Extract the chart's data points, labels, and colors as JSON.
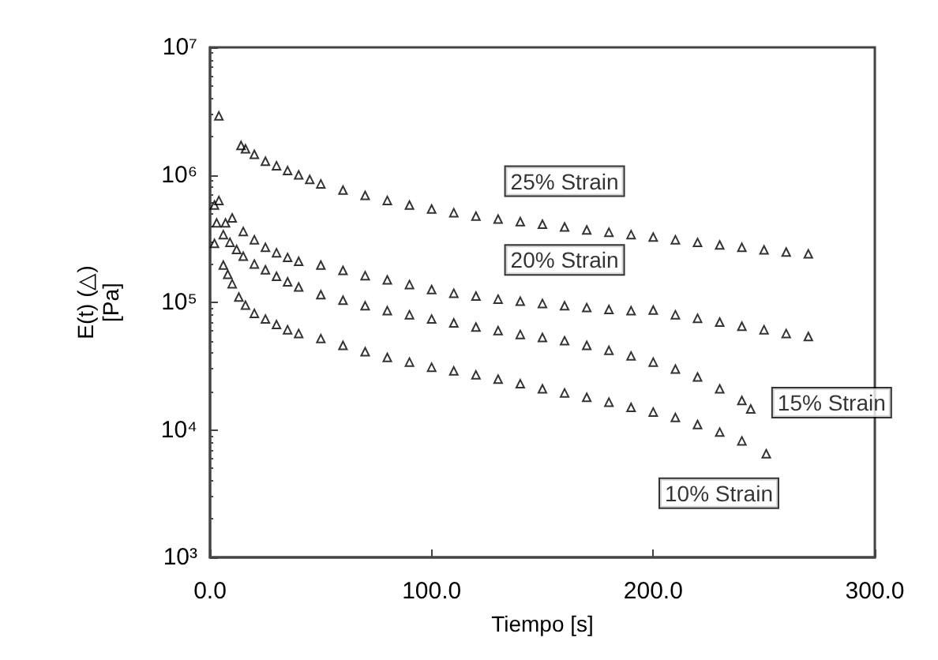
{
  "chart_data": {
    "type": "scatter",
    "xlabel": "Tiempo [s]",
    "ylabel": "E(t) (△)\n[Pa]",
    "log": "y",
    "marker": "triangle",
    "grid": false,
    "xlim": [
      0,
      300
    ],
    "xticks": [
      {
        "value": 0,
        "label": "0.0"
      },
      {
        "value": 100,
        "label": "100.0"
      },
      {
        "value": 200,
        "label": "200.0"
      },
      {
        "value": 300,
        "label": "300.0"
      }
    ],
    "ylim": [
      1000,
      10000000
    ],
    "yticks": [
      {
        "value": 1000,
        "label": "10³"
      },
      {
        "value": 10000,
        "label": "10⁴"
      },
      {
        "value": 100000,
        "label": "10⁵"
      },
      {
        "value": 1000000,
        "label": "10⁶"
      },
      {
        "value": 10000000,
        "label": "10⁷"
      }
    ],
    "series": [
      {
        "name": "25% Strain",
        "color": "#000000",
        "x": [
          4,
          14,
          16,
          20,
          25,
          30,
          35,
          40,
          45,
          50,
          60,
          70,
          80,
          90,
          100,
          110,
          120,
          130,
          140,
          150,
          160,
          170,
          180,
          190,
          200,
          210,
          220,
          230,
          240,
          250,
          260,
          270
        ],
        "values": [
          2900000,
          1700000,
          1600000,
          1450000,
          1280000,
          1180000,
          1080000,
          1000000,
          920000,
          850000,
          760000,
          690000,
          630000,
          580000,
          540000,
          505000,
          475000,
          450000,
          430000,
          410000,
          390000,
          370000,
          355000,
          340000,
          325000,
          310000,
          295000,
          282000,
          270000,
          258000,
          248000,
          240000
        ]
      },
      {
        "name": "20% Strain",
        "color": "#000000",
        "x": [
          2,
          4,
          7,
          10,
          15,
          20,
          25,
          30,
          35,
          40,
          50,
          60,
          70,
          80,
          90,
          100,
          110,
          120,
          130,
          140,
          150,
          160,
          170,
          180,
          190,
          200,
          210,
          220,
          230,
          240,
          250,
          260,
          270
        ],
        "values": [
          580000,
          630000,
          420000,
          460000,
          360000,
          310000,
          270000,
          245000,
          225000,
          210000,
          196000,
          178000,
          162000,
          150000,
          138000,
          126000,
          118000,
          112000,
          106000,
          102000,
          98000,
          94000,
          91000,
          88000,
          86000,
          87000,
          80000,
          75000,
          70000,
          65000,
          61000,
          57000,
          54000
        ]
      },
      {
        "name": "15% Strain",
        "color": "#000000",
        "x": [
          3,
          6,
          9,
          12,
          15,
          20,
          25,
          30,
          35,
          40,
          50,
          60,
          70,
          80,
          90,
          100,
          110,
          120,
          130,
          140,
          150,
          160,
          170,
          180,
          190,
          200,
          210,
          220,
          230,
          240,
          244
        ],
        "values": [
          420000,
          340000,
          296000,
          260000,
          230000,
          200000,
          180000,
          160000,
          145000,
          132000,
          115000,
          104000,
          94000,
          86000,
          80000,
          74000,
          69000,
          64000,
          60000,
          56000,
          53000,
          50000,
          46000,
          42000,
          38000,
          34000,
          30000,
          26000,
          21000,
          17000,
          14600
        ]
      },
      {
        "name": "10% Strain",
        "color": "#000000",
        "x": [
          2,
          6,
          8,
          10,
          13,
          16,
          20,
          25,
          30,
          35,
          40,
          50,
          60,
          70,
          80,
          90,
          100,
          110,
          120,
          130,
          140,
          150,
          160,
          170,
          180,
          190,
          200,
          210,
          220,
          230,
          240,
          251
        ],
        "values": [
          290000,
          196000,
          166000,
          140000,
          110000,
          95000,
          82000,
          74000,
          67000,
          61000,
          57000,
          52000,
          46000,
          41000,
          37000,
          34000,
          31000,
          29000,
          27000,
          25000,
          23000,
          21000,
          19500,
          18000,
          16500,
          15000,
          13800,
          12500,
          11000,
          9600,
          8200,
          6500
        ]
      }
    ]
  }
}
